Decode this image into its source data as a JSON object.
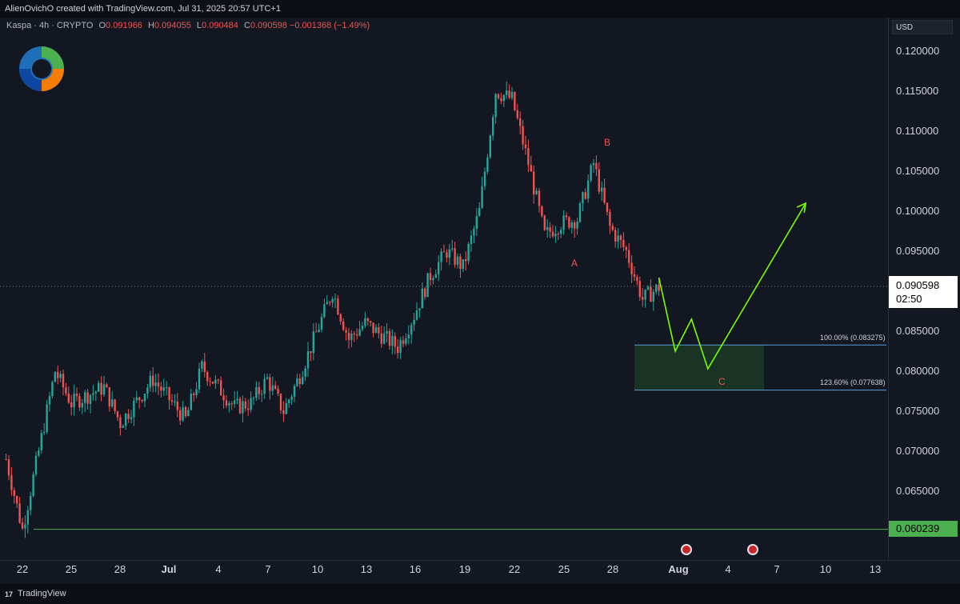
{
  "header": {
    "credit": "AlienOvichO created with TradingView.com, Jul 31, 2025 20:57 UTC+1"
  },
  "symbol": {
    "title": "Kaspa · 4h · CRYPTO",
    "open_label": "O",
    "open": "0.091966",
    "high_label": "H",
    "high": "0.094055",
    "low_label": "L",
    "low": "0.090484",
    "close_label": "C",
    "close": "0.090598",
    "change": "−0.001368 (−1.49%)"
  },
  "price_axis": {
    "currency": "USD",
    "ticks": [
      "0.120000",
      "0.115000",
      "0.110000",
      "0.105000",
      "0.100000",
      "0.095000",
      "0.090000",
      "0.085000",
      "0.080000",
      "0.075000",
      "0.070000",
      "0.065000"
    ],
    "current_price": "0.090598",
    "countdown": "02:50",
    "low_marker": "0.060239"
  },
  "time_axis": {
    "labels": [
      "22",
      "25",
      "28",
      "Jul",
      "4",
      "7",
      "10",
      "13",
      "16",
      "19",
      "22",
      "25",
      "28",
      "Aug",
      "4",
      "7",
      "10",
      "13"
    ]
  },
  "annotations": {
    "fib_100": "100.00% (0.083275)",
    "fib_123": "123.60% (0.077638)",
    "wave_a": "A",
    "wave_b": "B",
    "wave_c": "C"
  },
  "colors": {
    "up": "#26a69a",
    "down": "#ef5350",
    "projection": "#76ff03",
    "zone": "#1b3a26",
    "background": "#131722"
  },
  "footer": {
    "brand": "TradingView"
  },
  "chart_data": {
    "type": "candlestick",
    "title": "Kaspa · 4h · CRYPTO",
    "ylim": [
      0.058,
      0.124
    ],
    "grid": false,
    "anchors": [
      [
        "Jun 21",
        0.069
      ],
      [
        "Jun 22",
        0.0602
      ],
      [
        "Jun 23",
        0.07
      ],
      [
        "Jun 24",
        0.08
      ],
      [
        "Jun 25",
        0.076
      ],
      [
        "Jun 27",
        0.078
      ],
      [
        "Jun 28",
        0.0735
      ],
      [
        "Jun 30",
        0.079
      ],
      [
        "Jul 2",
        0.074
      ],
      [
        "Jul 3",
        0.0805
      ],
      [
        "Jul 5",
        0.0755
      ],
      [
        "Jul 6",
        0.076
      ],
      [
        "Jul 7",
        0.079
      ],
      [
        "Jul 8",
        0.075
      ],
      [
        "Jul 9",
        0.0795
      ],
      [
        "Jul 11",
        0.09
      ],
      [
        "Jul 12",
        0.084
      ],
      [
        "Jul 13",
        0.086
      ],
      [
        "Jul 15",
        0.083
      ],
      [
        "Jul 16",
        0.087
      ],
      [
        "Jul 17",
        0.092
      ],
      [
        "Jul 18",
        0.095
      ],
      [
        "Jul 19",
        0.093
      ],
      [
        "Jul 20",
        0.1
      ],
      [
        "Jul 21",
        0.115
      ],
      [
        "Jul 22",
        0.114
      ],
      [
        "Jul 23",
        0.106
      ],
      [
        "Jul 24",
        0.097
      ],
      [
        "Jul 25",
        0.0985
      ],
      [
        "Jul 26",
        0.099
      ],
      [
        "Jul 27",
        0.106
      ],
      [
        "Jul 28",
        0.098
      ],
      [
        "Jul 29",
        0.095
      ],
      [
        "Jul 30",
        0.089
      ],
      [
        "Jul 31",
        0.0905
      ]
    ],
    "projection": [
      [
        "Jul 31",
        0.0917
      ],
      [
        "Aug 1",
        0.0825
      ],
      [
        "Aug 2",
        0.0865
      ],
      [
        "Aug 3",
        0.0803
      ],
      [
        "Aug 9",
        0.101
      ]
    ],
    "fib_levels": [
      {
        "label": "100.00% (0.083275)",
        "value": 0.083275
      },
      {
        "label": "123.60% (0.077638)",
        "value": 0.077638
      }
    ]
  }
}
